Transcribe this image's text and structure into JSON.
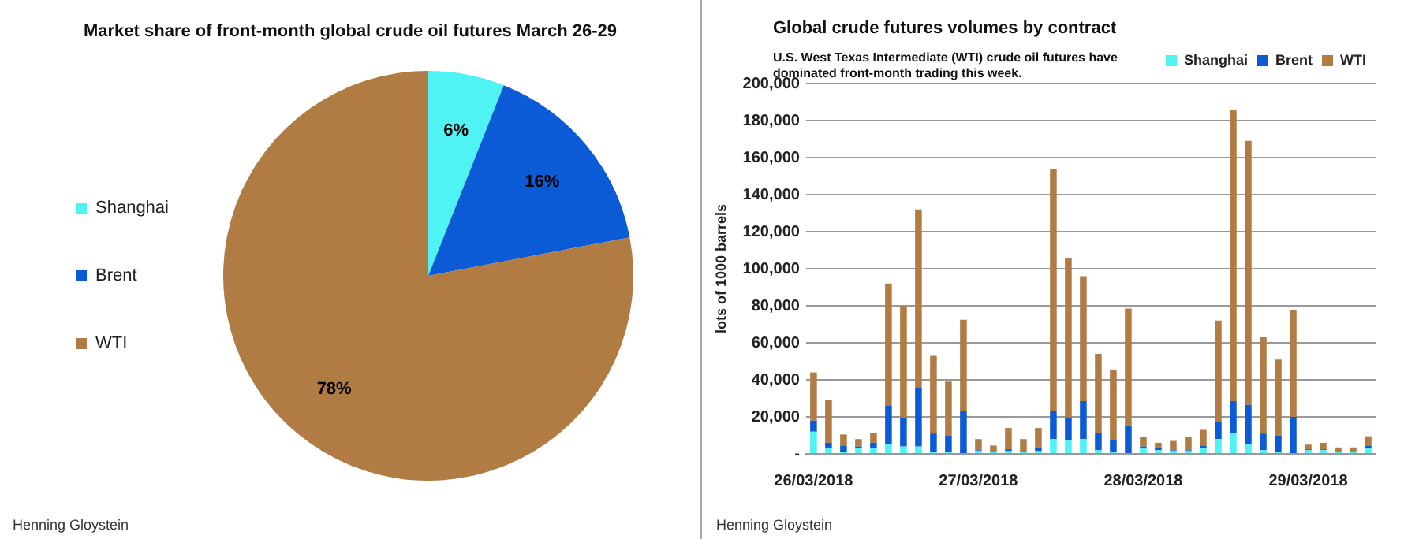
{
  "chart_data": [
    {
      "type": "pie",
      "title": "Market share of front-month global crude oil futures March 26-29",
      "categories": [
        "Shanghai",
        "Brent",
        "WTI"
      ],
      "values": [
        6,
        16,
        78
      ],
      "colors": [
        "#4ff3f3",
        "#0b5ad6",
        "#b17c43"
      ],
      "value_labels": [
        "6%",
        "16%",
        "78%"
      ],
      "legend": "left",
      "annotations": [
        "Henning Gloystein"
      ]
    },
    {
      "type": "bar",
      "title": "Global crude futures volumes by contract",
      "subtitle": "U.S. West Texas Intermediate (WTI) crude oil futures have dominated front-month trading this week.",
      "ylabel": "lots of 1000 barrels",
      "stacked": true,
      "legend": "top right",
      "grid": "y",
      "categories": [
        "26/03/2018",
        null,
        null,
        null,
        null,
        null,
        null,
        null,
        null,
        null,
        null,
        "27/03/2018",
        null,
        null,
        null,
        null,
        null,
        null,
        null,
        null,
        null,
        null,
        "28/03/2018",
        null,
        null,
        null,
        null,
        null,
        null,
        null,
        null,
        null,
        null,
        "29/03/2018",
        null,
        null,
        null,
        null
      ],
      "ylim": [
        0,
        200000
      ],
      "yticks": [
        {
          "value": 0,
          "label": "-"
        },
        {
          "value": 20000,
          "label": "20,000"
        },
        {
          "value": 40000,
          "label": "40,000"
        },
        {
          "value": 60000,
          "label": "60,000"
        },
        {
          "value": 80000,
          "label": "80,000"
        },
        {
          "value": 100000,
          "label": "100,000"
        },
        {
          "value": 120000,
          "label": "120,000"
        },
        {
          "value": 140000,
          "label": "140,000"
        },
        {
          "value": 160000,
          "label": "160,000"
        },
        {
          "value": 180000,
          "label": "180,000"
        },
        {
          "value": 200000,
          "label": "200,000"
        }
      ],
      "series": [
        {
          "name": "Shanghai",
          "color": "#4ff3f3",
          "values": [
            12000,
            3000,
            1000,
            3000,
            3000,
            5500,
            4000,
            4000,
            1000,
            1000,
            null,
            1500,
            1000,
            1500,
            1000,
            1500,
            8000,
            7500,
            8000,
            2000,
            1000,
            null,
            3000,
            2000,
            1500,
            1500,
            3000,
            8000,
            11500,
            5500,
            2000,
            1000,
            null,
            2000,
            2000,
            1000,
            1000,
            3000
          ]
        },
        {
          "name": "Brent",
          "color": "#0b5ad6",
          "values": [
            6000,
            3000,
            3500,
            1000,
            3000,
            20500,
            15500,
            32000,
            10000,
            9000,
            23000,
            500,
            500,
            1000,
            500,
            2000,
            15000,
            12000,
            20500,
            9500,
            6500,
            15500,
            1000,
            1000,
            500,
            500,
            1500,
            9500,
            17000,
            21000,
            9000,
            9000,
            20000,
            500,
            500,
            500,
            500,
            1500
          ]
        },
        {
          "name": "WTI",
          "color": "#b17c43",
          "values": [
            26000,
            23000,
            6000,
            4000,
            5500,
            66000,
            60500,
            96000,
            42000,
            29000,
            49500,
            6000,
            3000,
            11500,
            6500,
            10500,
            131000,
            86500,
            67500,
            42500,
            38000,
            63000,
            5000,
            3000,
            5000,
            7000,
            8500,
            54500,
            157500,
            142500,
            52000,
            41000,
            57500,
            2500,
            3500,
            2000,
            2000,
            5000
          ]
        }
      ],
      "annotations": [
        "Henning Gloystein"
      ]
    }
  ]
}
